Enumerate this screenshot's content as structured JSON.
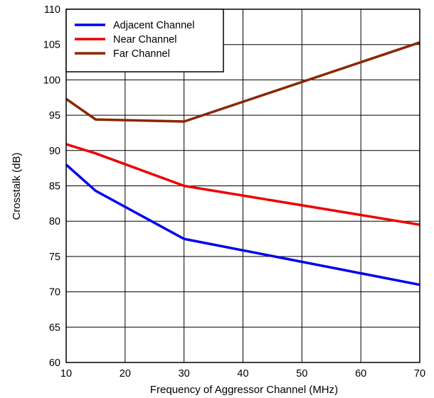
{
  "chart_data": {
    "type": "line",
    "title": "",
    "xlabel": "Frequency of Aggressor Channel (MHz)",
    "ylabel": "Crosstalk (dB)",
    "xlim": [
      10,
      70
    ],
    "ylim": [
      60,
      110
    ],
    "xticks": [
      10,
      20,
      30,
      40,
      50,
      60,
      70
    ],
    "yticks": [
      60,
      65,
      70,
      75,
      80,
      85,
      90,
      95,
      100,
      105,
      110
    ],
    "grid": true,
    "legend_position": "top-left",
    "series": [
      {
        "name": "Adjacent Channel",
        "color": "#0000ee",
        "x": [
          10,
          15,
          30,
          70
        ],
        "y": [
          88.0,
          84.3,
          77.5,
          71.0
        ]
      },
      {
        "name": "Near Channel",
        "color": "#ee0000",
        "x": [
          10,
          15,
          30,
          70
        ],
        "y": [
          90.9,
          89.6,
          85.0,
          79.5
        ]
      },
      {
        "name": "Far Channel",
        "color": "#8b2500",
        "x": [
          10,
          15,
          30,
          70
        ],
        "y": [
          97.3,
          94.4,
          94.1,
          105.3
        ]
      }
    ]
  }
}
